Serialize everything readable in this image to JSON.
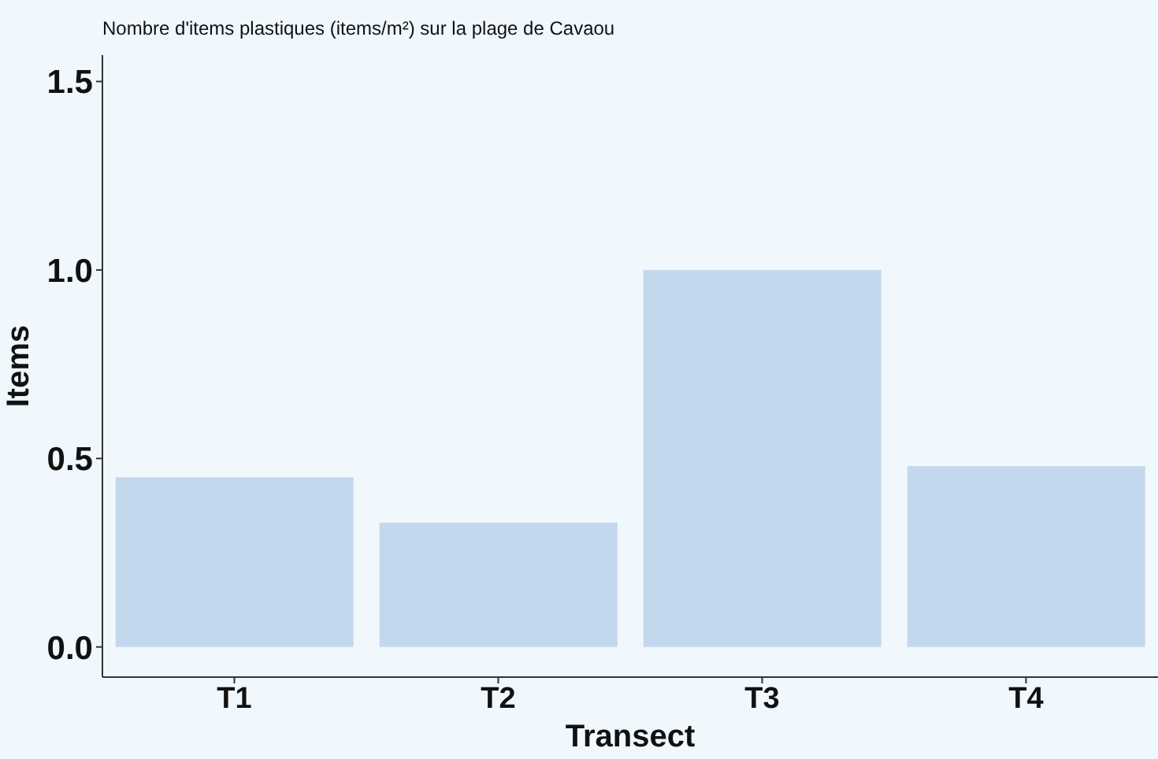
{
  "chart_data": {
    "type": "bar",
    "title": "Nombre d'items plastiques (items/m²) sur la plage de Cavaou",
    "xlabel": "Transect",
    "ylabel": "Items",
    "categories": [
      "T1",
      "T2",
      "T3",
      "T4"
    ],
    "values": [
      0.45,
      0.33,
      1.0,
      0.48
    ],
    "color": "#c4d8ed",
    "ylim": [
      -0.08,
      1.57
    ],
    "yticks": [
      {
        "value": 0,
        "label": "0.0"
      },
      {
        "value": 0.5,
        "label": "0.5"
      },
      {
        "value": 1,
        "label": "1.0"
      },
      {
        "value": 1.5,
        "label": "1.5"
      }
    ],
    "grid": false
  }
}
